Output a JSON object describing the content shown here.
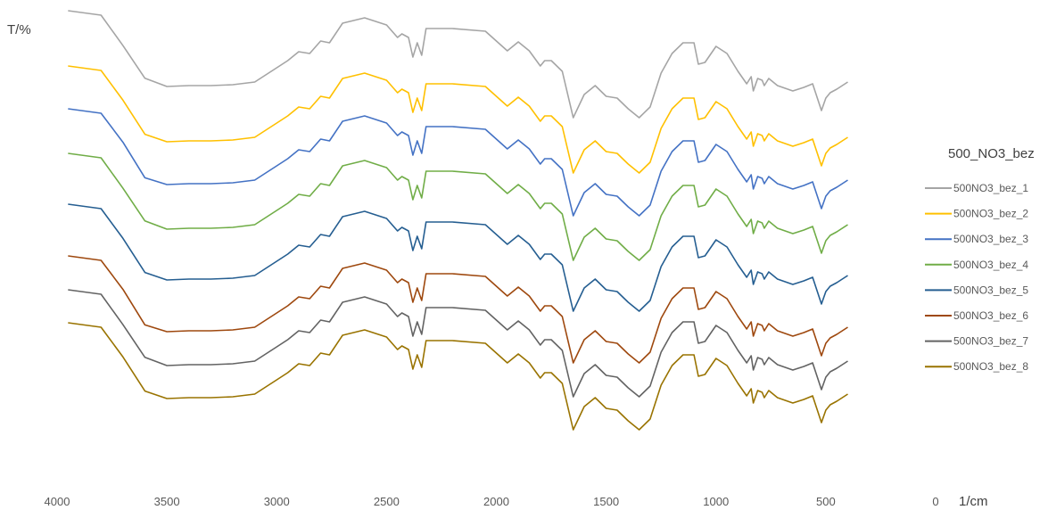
{
  "chart_data": {
    "type": "line",
    "ylabel": "T/%",
    "xlabel": "1/cm",
    "x_ticks": [
      "4000",
      "3500",
      "3000",
      "2500",
      "2000",
      "1500",
      "1000",
      "500",
      "0"
    ],
    "xlim": [
      4000,
      0
    ],
    "x_reversed": true,
    "grid": false,
    "legend_placement": "right",
    "legend_title": "500_NO3_bez",
    "series": [
      {
        "name": "500NO3_bez_1",
        "color": "#A5A5A5",
        "offset": 0,
        "points": [
          [
            3950,
            0
          ],
          [
            3800,
            5
          ],
          [
            3700,
            40
          ],
          [
            3600,
            75
          ],
          [
            3500,
            85
          ],
          [
            3400,
            84
          ],
          [
            3300,
            84
          ],
          [
            3200,
            83
          ],
          [
            3100,
            80
          ],
          [
            3000,
            64
          ],
          [
            2950,
            56
          ],
          [
            2900,
            46
          ],
          [
            2850,
            48
          ],
          [
            2800,
            34
          ],
          [
            2760,
            36
          ],
          [
            2700,
            14
          ],
          [
            2600,
            8
          ],
          [
            2500,
            16
          ],
          [
            2450,
            30
          ],
          [
            2430,
            26
          ],
          [
            2400,
            30
          ],
          [
            2380,
            52
          ],
          [
            2360,
            36
          ],
          [
            2340,
            50
          ],
          [
            2320,
            20
          ],
          [
            2200,
            20
          ],
          [
            2050,
            23
          ],
          [
            1950,
            45
          ],
          [
            1900,
            35
          ],
          [
            1850,
            45
          ],
          [
            1800,
            62
          ],
          [
            1780,
            56
          ],
          [
            1750,
            56
          ],
          [
            1700,
            68
          ],
          [
            1650,
            120
          ],
          [
            1600,
            94
          ],
          [
            1550,
            84
          ],
          [
            1500,
            96
          ],
          [
            1450,
            98
          ],
          [
            1400,
            110
          ],
          [
            1350,
            120
          ],
          [
            1300,
            108
          ],
          [
            1250,
            70
          ],
          [
            1200,
            48
          ],
          [
            1150,
            36
          ],
          [
            1100,
            36
          ],
          [
            1080,
            60
          ],
          [
            1050,
            58
          ],
          [
            1000,
            40
          ],
          [
            950,
            48
          ],
          [
            900,
            68
          ],
          [
            860,
            82
          ],
          [
            840,
            74
          ],
          [
            830,
            90
          ],
          [
            810,
            76
          ],
          [
            790,
            78
          ],
          [
            780,
            84
          ],
          [
            760,
            76
          ],
          [
            720,
            84
          ],
          [
            650,
            90
          ],
          [
            600,
            86
          ],
          [
            560,
            82
          ],
          [
            520,
            112
          ],
          [
            500,
            98
          ],
          [
            480,
            92
          ],
          [
            450,
            88
          ],
          [
            400,
            80
          ]
        ]
      },
      {
        "name": "500NO3_bez_2",
        "color": "#FFC000",
        "offset": 62
      },
      {
        "name": "500NO3_bez_3",
        "color": "#4472C4",
        "offset": 110
      },
      {
        "name": "500NO3_bez_4",
        "color": "#70AD47",
        "offset": 160
      },
      {
        "name": "500NO3_bez_5",
        "color": "#255E91",
        "offset": 217
      },
      {
        "name": "500NO3_bez_6",
        "color": "#9E480E",
        "offset": 275
      },
      {
        "name": "500NO3_bez_7",
        "color": "#636363",
        "offset": 313
      },
      {
        "name": "500NO3_bez_8",
        "color": "#997300",
        "offset": 350
      }
    ]
  }
}
